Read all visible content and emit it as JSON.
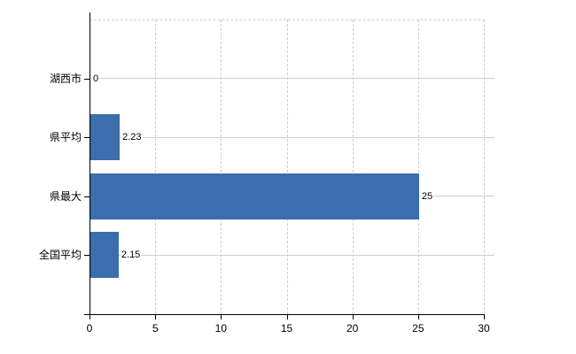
{
  "chart_data": {
    "type": "bar",
    "orientation": "horizontal",
    "title": "",
    "xlabel": "",
    "ylabel": "",
    "categories": [
      "湖西市",
      "県平均",
      "県最大",
      "全国平均"
    ],
    "values": [
      0,
      2.23,
      25,
      2.15
    ],
    "value_labels": [
      "0",
      "2.23",
      "25",
      "2.15"
    ],
    "xlim": [
      0,
      30
    ],
    "xticks": [
      0,
      5,
      10,
      15,
      20,
      25,
      30
    ],
    "xtick_labels": [
      "0",
      "5",
      "10",
      "15",
      "20",
      "25",
      "30"
    ],
    "grid": true,
    "legend": false,
    "colors": {
      "bar": "#3C6DAD",
      "grid_solid": "#cfcfc9",
      "grid_dashed": "#cdcdcd",
      "axis": "#000000",
      "text": "#000000",
      "background": "#ffffff"
    }
  }
}
